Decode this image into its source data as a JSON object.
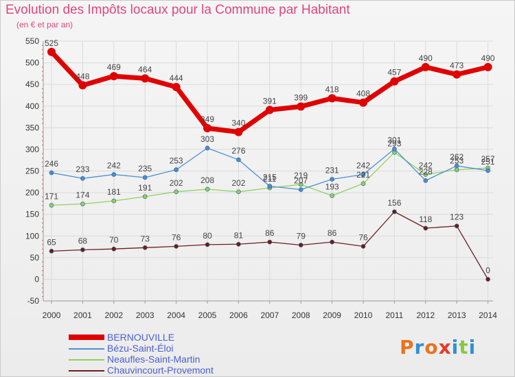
{
  "header": {
    "title": "Evolution des Impôts locaux pour la Commune par Habitant",
    "subtitle": "(en € et par an)"
  },
  "logo": {
    "text": "Proxiti",
    "letters": [
      "P",
      "r",
      "o",
      "x",
      "i",
      "t",
      "i"
    ],
    "colors": [
      "#e9731f",
      "#2f8fd6",
      "#e9731f",
      "#e53a2e",
      "#2f8fd6",
      "#8cc63f",
      "#2f8fd6"
    ]
  },
  "chart_data": {
    "type": "line",
    "title": "Evolution des Impôts locaux pour la Commune par Habitant",
    "subtitle": "(en € et par an)",
    "xlabel": "",
    "ylabel": "",
    "ylim": [
      -50,
      550
    ],
    "yticks": [
      -50,
      0,
      50,
      100,
      150,
      200,
      250,
      300,
      350,
      400,
      450,
      500,
      550
    ],
    "grid": true,
    "legend_position": "bottom-left",
    "x": [
      "2000",
      "2001",
      "2002",
      "2003",
      "2004",
      "2005",
      "2006",
      "2007",
      "2008",
      "2009",
      "2010",
      "2011",
      "2012",
      "2013",
      "2014"
    ],
    "series": [
      {
        "name": "BERNOUVILLE",
        "color": "#e00000",
        "values": [
          525,
          448,
          469,
          464,
          444,
          349,
          340,
          391,
          399,
          418,
          408,
          457,
          490,
          473,
          490
        ]
      },
      {
        "name": "Bézu-Saint-Éloi",
        "color": "#4a8fd0",
        "values": [
          246,
          233,
          242,
          235,
          253,
          303,
          276,
          215,
          207,
          231,
          242,
          301,
          228,
          262,
          251
        ]
      },
      {
        "name": "Neaufles-Saint-Martin",
        "color": "#8fd060",
        "values": [
          171,
          174,
          181,
          191,
          202,
          208,
          202,
          211,
          219,
          193,
          221,
          293,
          242,
          253,
          257
        ]
      },
      {
        "name": "Chauvincourt-Provemont",
        "color": "#6b1d1d",
        "values": [
          65,
          68,
          70,
          73,
          76,
          80,
          81,
          86,
          79,
          86,
          76,
          156,
          118,
          123,
          0
        ]
      }
    ]
  }
}
